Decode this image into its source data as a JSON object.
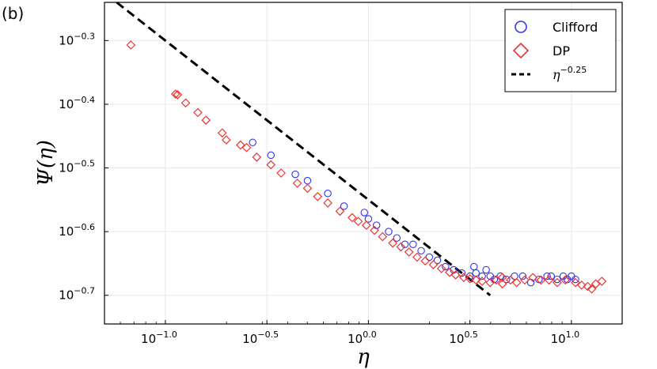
{
  "panel_label": "(b)",
  "chart_data": {
    "type": "scatter",
    "xscale": "log",
    "yscale": "log",
    "xlabel": "η",
    "ylabel": "Ψ(η)",
    "xlim_log10": [
      -1.3,
      1.25
    ],
    "ylim_log10": [
      -0.745,
      -0.24
    ],
    "xticks": [
      {
        "base": "10",
        "exp": "−1.0",
        "log10": -1.0
      },
      {
        "base": "10",
        "exp": "−0.5",
        "log10": -0.5
      },
      {
        "base": "10",
        "exp": "0.0",
        "log10": 0.0
      },
      {
        "base": "10",
        "exp": "0.5",
        "log10": 0.5
      },
      {
        "base": "10",
        "exp": "1.0",
        "log10": 1.0
      }
    ],
    "yticks": [
      {
        "base": "10",
        "exp": "−0.3",
        "log10": -0.3
      },
      {
        "base": "10",
        "exp": "−0.4",
        "log10": -0.4
      },
      {
        "base": "10",
        "exp": "−0.5",
        "log10": -0.5
      },
      {
        "base": "10",
        "exp": "−0.6",
        "log10": -0.6
      },
      {
        "base": "10",
        "exp": "−0.7",
        "log10": -0.7
      }
    ],
    "grid": true,
    "legend_position": "top-right",
    "legend": [
      {
        "label": "Clifford",
        "marker": "circle",
        "color": "#3333ee"
      },
      {
        "label": "DP",
        "marker": "diamond",
        "color": "#ee3333"
      },
      {
        "label_base": "η",
        "label_exp": "−0.25",
        "marker": "dashed-line",
        "color": "#000000"
      }
    ],
    "fit_line": {
      "slope": -0.25,
      "intercept_log10": -0.55,
      "x_log10": [
        -1.24,
        0.6
      ]
    },
    "series": [
      {
        "name": "Clifford",
        "marker": "circle",
        "color": "#3333ee",
        "points_log10": [
          [
            -0.57,
            -0.46
          ],
          [
            -0.48,
            -0.48
          ],
          [
            -0.36,
            -0.51
          ],
          [
            -0.3,
            -0.52
          ],
          [
            -0.2,
            -0.54
          ],
          [
            -0.12,
            -0.56
          ],
          [
            -0.02,
            -0.57
          ],
          [
            0.0,
            -0.58
          ],
          [
            0.04,
            -0.59
          ],
          [
            0.1,
            -0.6
          ],
          [
            0.14,
            -0.61
          ],
          [
            0.18,
            -0.62
          ],
          [
            0.22,
            -0.62
          ],
          [
            0.26,
            -0.63
          ],
          [
            0.3,
            -0.64
          ],
          [
            0.34,
            -0.645
          ],
          [
            0.38,
            -0.655
          ],
          [
            0.42,
            -0.66
          ],
          [
            0.46,
            -0.665
          ],
          [
            0.5,
            -0.67
          ],
          [
            0.53,
            -0.665
          ],
          [
            0.56,
            -0.67
          ],
          [
            0.58,
            -0.66
          ],
          [
            0.6,
            -0.67
          ],
          [
            0.62,
            -0.675
          ],
          [
            0.65,
            -0.67
          ],
          [
            0.68,
            -0.675
          ],
          [
            0.72,
            -0.67
          ],
          [
            0.76,
            -0.67
          ],
          [
            0.8,
            -0.68
          ],
          [
            0.84,
            -0.675
          ],
          [
            0.88,
            -0.67
          ],
          [
            0.9,
            -0.67
          ],
          [
            0.93,
            -0.675
          ],
          [
            0.96,
            -0.67
          ],
          [
            0.98,
            -0.675
          ],
          [
            1.0,
            -0.67
          ],
          [
            1.02,
            -0.675
          ],
          [
            0.52,
            -0.655
          ]
        ]
      },
      {
        "name": "DP",
        "marker": "diamond",
        "color": "#ee3333",
        "points_log10": [
          [
            -1.17,
            -0.307
          ],
          [
            -0.95,
            -0.384
          ],
          [
            -0.94,
            -0.385
          ],
          [
            -0.9,
            -0.398
          ],
          [
            -0.84,
            -0.413
          ],
          [
            -0.8,
            -0.425
          ],
          [
            -0.72,
            -0.445
          ],
          [
            -0.7,
            -0.456
          ],
          [
            -0.63,
            -0.464
          ],
          [
            -0.6,
            -0.468
          ],
          [
            -0.55,
            -0.483
          ],
          [
            -0.48,
            -0.495
          ],
          [
            -0.43,
            -0.508
          ],
          [
            -0.35,
            -0.524
          ],
          [
            -0.3,
            -0.532
          ],
          [
            -0.25,
            -0.545
          ],
          [
            -0.2,
            -0.555
          ],
          [
            -0.14,
            -0.568
          ],
          [
            -0.08,
            -0.578
          ],
          [
            -0.05,
            -0.584
          ],
          [
            -0.01,
            -0.59
          ],
          [
            0.03,
            -0.598
          ],
          [
            0.07,
            -0.608
          ],
          [
            0.12,
            -0.618
          ],
          [
            0.16,
            -0.624
          ],
          [
            0.2,
            -0.632
          ],
          [
            0.24,
            -0.64
          ],
          [
            0.28,
            -0.646
          ],
          [
            0.32,
            -0.652
          ],
          [
            0.36,
            -0.658
          ],
          [
            0.4,
            -0.664
          ],
          [
            0.43,
            -0.668
          ],
          [
            0.47,
            -0.672
          ],
          [
            0.5,
            -0.674
          ],
          [
            0.53,
            -0.676
          ],
          [
            0.56,
            -0.678
          ],
          [
            0.6,
            -0.68
          ],
          [
            0.63,
            -0.676
          ],
          [
            0.66,
            -0.672
          ],
          [
            0.7,
            -0.676
          ],
          [
            0.73,
            -0.68
          ],
          [
            0.77,
            -0.676
          ],
          [
            0.81,
            -0.672
          ],
          [
            0.85,
            -0.676
          ],
          [
            0.89,
            -0.676
          ],
          [
            0.93,
            -0.68
          ],
          [
            0.97,
            -0.676
          ],
          [
            1.02,
            -0.68
          ],
          [
            1.05,
            -0.684
          ],
          [
            1.08,
            -0.686
          ],
          [
            1.12,
            -0.682
          ],
          [
            1.15,
            -0.678
          ],
          [
            1.1,
            -0.69
          ],
          [
            0.66,
            -0.682
          ]
        ]
      }
    ]
  }
}
